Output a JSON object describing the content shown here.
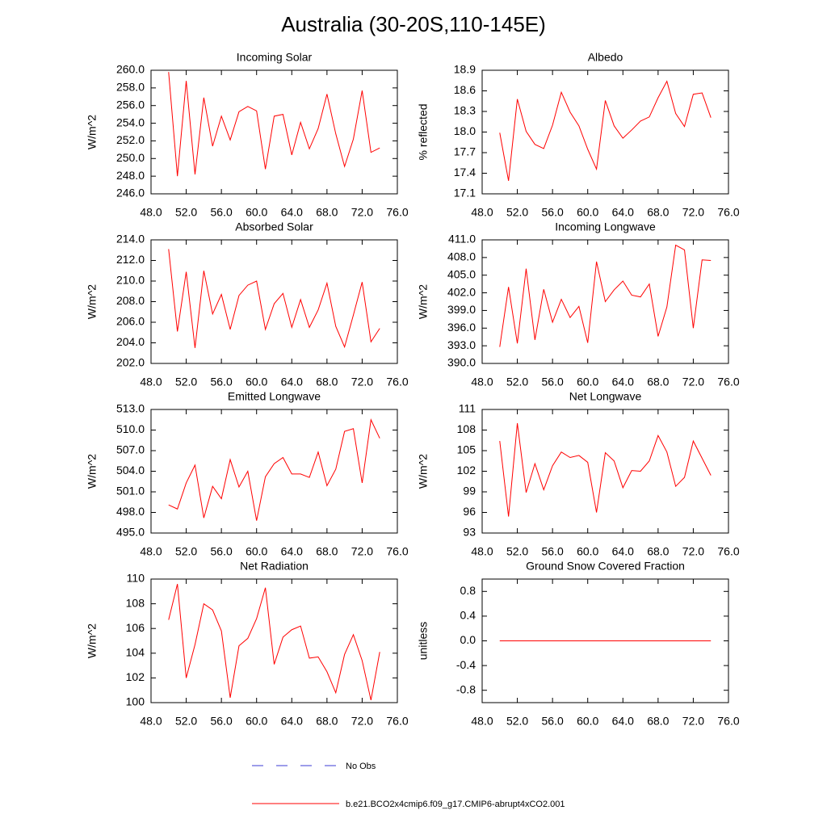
{
  "title": "Australia (30-20S,110-145E)",
  "legend": [
    {
      "label": "No Obs",
      "color": "#3b3bd6",
      "dash": true
    },
    {
      "label": "b.e21.BCO2x4cmip6.f09_g17.CMIP6-abrupt4xCO2.001",
      "color": "#ff0000",
      "dash": false
    }
  ],
  "chart_data": [
    {
      "type": "line",
      "title": "Incoming Solar",
      "y_label": "W/m^2",
      "color": "#ff0000",
      "x": [
        50,
        51,
        52,
        53,
        54,
        55,
        56,
        57,
        58,
        59,
        60,
        61,
        62,
        63,
        64,
        65,
        66,
        67,
        68,
        69,
        70,
        71,
        72,
        73,
        74
      ],
      "values": [
        259.8,
        248.0,
        258.8,
        248.2,
        256.9,
        251.4,
        254.8,
        252.1,
        255.3,
        255.9,
        255.4,
        248.8,
        254.8,
        255.0,
        250.4,
        254.1,
        251.1,
        253.4,
        257.3,
        252.8,
        249.1,
        252.2,
        257.7,
        250.7,
        251.2
      ],
      "xlim": [
        48,
        76
      ],
      "xticks": [
        {
          "value": 48,
          "label": "48.0"
        },
        {
          "value": 52,
          "label": "52.0"
        },
        {
          "value": 56,
          "label": "56.0"
        },
        {
          "value": 60,
          "label": "60.0"
        },
        {
          "value": 64,
          "label": "64.0"
        },
        {
          "value": 68,
          "label": "68.0"
        },
        {
          "value": 72,
          "label": "72.0"
        },
        {
          "value": 76,
          "label": "76.0"
        }
      ],
      "ylim": [
        246,
        260
      ],
      "yticks": [
        {
          "value": 246,
          "label": "246.0"
        },
        {
          "value": 248,
          "label": "248.0"
        },
        {
          "value": 250,
          "label": "250.0"
        },
        {
          "value": 252,
          "label": "252.0"
        },
        {
          "value": 254,
          "label": "254.0"
        },
        {
          "value": 256,
          "label": "256.0"
        },
        {
          "value": 258,
          "label": "258.0"
        },
        {
          "value": 260,
          "label": "260.0"
        }
      ]
    },
    {
      "type": "line",
      "title": "Albedo",
      "y_label": "% reflected",
      "color": "#ff0000",
      "x": [
        50,
        51,
        52,
        53,
        54,
        55,
        56,
        57,
        58,
        59,
        60,
        61,
        62,
        63,
        64,
        65,
        66,
        67,
        68,
        69,
        70,
        71,
        72,
        73,
        74
      ],
      "values": [
        17.99,
        17.29,
        18.48,
        18.01,
        17.82,
        17.76,
        18.1,
        18.58,
        18.29,
        18.09,
        17.75,
        17.46,
        18.46,
        18.09,
        17.91,
        18.03,
        18.16,
        18.22,
        18.5,
        18.74,
        18.27,
        18.08,
        18.55,
        18.57,
        18.21
      ],
      "xlim": [
        48,
        76
      ],
      "xticks": [
        {
          "value": 48,
          "label": "48.0"
        },
        {
          "value": 52,
          "label": "52.0"
        },
        {
          "value": 56,
          "label": "56.0"
        },
        {
          "value": 60,
          "label": "60.0"
        },
        {
          "value": 64,
          "label": "64.0"
        },
        {
          "value": 68,
          "label": "68.0"
        },
        {
          "value": 72,
          "label": "72.0"
        },
        {
          "value": 76,
          "label": "76.0"
        }
      ],
      "ylim": [
        17.1,
        18.9
      ],
      "yticks": [
        17.1,
        17.4,
        17.7,
        {
          "value": 18,
          "label": "18.0"
        },
        18.3,
        18.6,
        18.9
      ]
    },
    {
      "type": "line",
      "title": "Absorbed Solar",
      "y_label": "W/m^2",
      "color": "#ff0000",
      "x": [
        50,
        51,
        52,
        53,
        54,
        55,
        56,
        57,
        58,
        59,
        60,
        61,
        62,
        63,
        64,
        65,
        66,
        67,
        68,
        69,
        70,
        71,
        72,
        73,
        74
      ],
      "values": [
        213.1,
        205.1,
        210.9,
        203.5,
        211.0,
        206.8,
        208.7,
        205.3,
        208.6,
        209.6,
        210.0,
        205.3,
        207.8,
        208.8,
        205.5,
        208.2,
        205.5,
        207.2,
        209.8,
        205.6,
        203.6,
        206.7,
        209.9,
        204.1,
        205.4
      ],
      "xlim": [
        48,
        76
      ],
      "xticks": [
        {
          "value": 48,
          "label": "48.0"
        },
        {
          "value": 52,
          "label": "52.0"
        },
        {
          "value": 56,
          "label": "56.0"
        },
        {
          "value": 60,
          "label": "60.0"
        },
        {
          "value": 64,
          "label": "64.0"
        },
        {
          "value": 68,
          "label": "68.0"
        },
        {
          "value": 72,
          "label": "72.0"
        },
        {
          "value": 76,
          "label": "76.0"
        }
      ],
      "ylim": [
        202,
        214
      ],
      "yticks": [
        {
          "value": 202,
          "label": "202.0"
        },
        {
          "value": 204,
          "label": "204.0"
        },
        {
          "value": 206,
          "label": "206.0"
        },
        {
          "value": 208,
          "label": "208.0"
        },
        {
          "value": 210,
          "label": "210.0"
        },
        {
          "value": 212,
          "label": "212.0"
        },
        {
          "value": 214,
          "label": "214.0"
        }
      ]
    },
    {
      "type": "line",
      "title": "Incoming Longwave",
      "y_label": "W/m^2",
      "color": "#ff0000",
      "x": [
        50,
        51,
        52,
        53,
        54,
        55,
        56,
        57,
        58,
        59,
        60,
        61,
        62,
        63,
        64,
        65,
        66,
        67,
        68,
        69,
        70,
        71,
        72,
        73,
        74
      ],
      "values": [
        392.8,
        403.0,
        393.4,
        406.1,
        394.0,
        402.6,
        397.0,
        400.9,
        397.8,
        399.7,
        393.5,
        407.3,
        400.5,
        402.5,
        404.0,
        401.6,
        401.3,
        403.5,
        394.6,
        399.6,
        410.1,
        409.3,
        396.0,
        407.6,
        407.5
      ],
      "xlim": [
        48,
        76
      ],
      "xticks": [
        {
          "value": 48,
          "label": "48.0"
        },
        {
          "value": 52,
          "label": "52.0"
        },
        {
          "value": 56,
          "label": "56.0"
        },
        {
          "value": 60,
          "label": "60.0"
        },
        {
          "value": 64,
          "label": "64.0"
        },
        {
          "value": 68,
          "label": "68.0"
        },
        {
          "value": 72,
          "label": "72.0"
        },
        {
          "value": 76,
          "label": "76.0"
        }
      ],
      "ylim": [
        390,
        411
      ],
      "yticks": [
        {
          "value": 390,
          "label": "390.0"
        },
        {
          "value": 393,
          "label": "393.0"
        },
        {
          "value": 396,
          "label": "396.0"
        },
        {
          "value": 399,
          "label": "399.0"
        },
        {
          "value": 402,
          "label": "402.0"
        },
        {
          "value": 405,
          "label": "405.0"
        },
        {
          "value": 408,
          "label": "408.0"
        },
        {
          "value": 411,
          "label": "411.0"
        }
      ]
    },
    {
      "type": "line",
      "title": "Emitted Longwave",
      "y_label": "W/m^2",
      "color": "#ff0000",
      "x": [
        50,
        51,
        52,
        53,
        54,
        55,
        56,
        57,
        58,
        59,
        60,
        61,
        62,
        63,
        64,
        65,
        66,
        67,
        68,
        69,
        70,
        71,
        72,
        73,
        74
      ],
      "values": [
        499.1,
        498.5,
        502.3,
        504.9,
        497.2,
        501.8,
        500.0,
        505.7,
        501.7,
        504.0,
        496.8,
        503.2,
        505.1,
        506.0,
        503.6,
        503.6,
        503.1,
        506.8,
        501.9,
        504.3,
        509.8,
        510.2,
        502.3,
        511.5,
        508.8
      ],
      "xlim": [
        48,
        76
      ],
      "xticks": [
        {
          "value": 48,
          "label": "48.0"
        },
        {
          "value": 52,
          "label": "52.0"
        },
        {
          "value": 56,
          "label": "56.0"
        },
        {
          "value": 60,
          "label": "60.0"
        },
        {
          "value": 64,
          "label": "64.0"
        },
        {
          "value": 68,
          "label": "68.0"
        },
        {
          "value": 72,
          "label": "72.0"
        },
        {
          "value": 76,
          "label": "76.0"
        }
      ],
      "ylim": [
        495,
        513
      ],
      "yticks": [
        {
          "value": 495,
          "label": "495.0"
        },
        {
          "value": 498,
          "label": "498.0"
        },
        {
          "value": 501,
          "label": "501.0"
        },
        {
          "value": 504,
          "label": "504.0"
        },
        {
          "value": 507,
          "label": "507.0"
        },
        {
          "value": 510,
          "label": "510.0"
        },
        {
          "value": 513,
          "label": "513.0"
        }
      ]
    },
    {
      "type": "line",
      "title": "Net Longwave",
      "y_label": "W/m^2",
      "color": "#ff0000",
      "x": [
        50,
        51,
        52,
        53,
        54,
        55,
        56,
        57,
        58,
        59,
        60,
        61,
        62,
        63,
        64,
        65,
        66,
        67,
        68,
        69,
        70,
        71,
        72,
        73,
        74
      ],
      "values": [
        106.4,
        95.4,
        109.0,
        98.9,
        103.1,
        99.3,
        102.8,
        104.8,
        104.0,
        104.3,
        103.3,
        96.0,
        104.7,
        103.5,
        99.6,
        102.1,
        102.0,
        103.5,
        107.2,
        104.8,
        99.8,
        101.1,
        106.4,
        103.9,
        101.4
      ],
      "xlim": [
        48,
        76
      ],
      "xticks": [
        {
          "value": 48,
          "label": "48.0"
        },
        {
          "value": 52,
          "label": "52.0"
        },
        {
          "value": 56,
          "label": "56.0"
        },
        {
          "value": 60,
          "label": "60.0"
        },
        {
          "value": 64,
          "label": "64.0"
        },
        {
          "value": 68,
          "label": "68.0"
        },
        {
          "value": 72,
          "label": "72.0"
        },
        {
          "value": 76,
          "label": "76.0"
        }
      ],
      "ylim": [
        93,
        111
      ],
      "yticks": [
        93,
        96,
        99,
        102,
        105,
        108,
        111
      ]
    },
    {
      "type": "line",
      "title": "Net Radiation",
      "y_label": "W/m^2",
      "color": "#ff0000",
      "x": [
        50,
        51,
        52,
        53,
        54,
        55,
        56,
        57,
        58,
        59,
        60,
        61,
        62,
        63,
        64,
        65,
        66,
        67,
        68,
        69,
        70,
        71,
        72,
        73,
        74
      ],
      "values": [
        106.7,
        109.6,
        102.0,
        104.7,
        108.0,
        107.5,
        105.8,
        100.4,
        104.6,
        105.2,
        106.8,
        109.3,
        103.1,
        105.3,
        105.9,
        106.2,
        103.6,
        103.7,
        102.5,
        100.8,
        103.9,
        105.5,
        103.4,
        100.2,
        104.1
      ],
      "xlim": [
        48,
        76
      ],
      "xticks": [
        {
          "value": 48,
          "label": "48.0"
        },
        {
          "value": 52,
          "label": "52.0"
        },
        {
          "value": 56,
          "label": "56.0"
        },
        {
          "value": 60,
          "label": "60.0"
        },
        {
          "value": 64,
          "label": "64.0"
        },
        {
          "value": 68,
          "label": "68.0"
        },
        {
          "value": 72,
          "label": "72.0"
        },
        {
          "value": 76,
          "label": "76.0"
        }
      ],
      "ylim": [
        100,
        110
      ],
      "yticks": [
        100,
        102,
        104,
        106,
        108,
        110
      ]
    },
    {
      "type": "line",
      "title": "Ground Snow Covered Fraction",
      "y_label": "unitless",
      "color": "#ff0000",
      "x": [
        50,
        51,
        52,
        53,
        54,
        55,
        56,
        57,
        58,
        59,
        60,
        61,
        62,
        63,
        64,
        65,
        66,
        67,
        68,
        69,
        70,
        71,
        72,
        73,
        74
      ],
      "values": [
        0,
        0,
        0,
        0,
        0,
        0,
        0,
        0,
        0,
        0,
        0,
        0,
        0,
        0,
        0,
        0,
        0,
        0,
        0,
        0,
        0,
        0,
        0,
        0,
        0
      ],
      "xlim": [
        48,
        76
      ],
      "xticks": [
        {
          "value": 48,
          "label": "48.0"
        },
        {
          "value": 52,
          "label": "52.0"
        },
        {
          "value": 56,
          "label": "56.0"
        },
        {
          "value": 60,
          "label": "60.0"
        },
        {
          "value": 64,
          "label": "64.0"
        },
        {
          "value": 68,
          "label": "68.0"
        },
        {
          "value": 72,
          "label": "72.0"
        },
        {
          "value": 76,
          "label": "76.0"
        }
      ],
      "ylim": [
        -1,
        1
      ],
      "yticks": [
        -0.8,
        -0.4,
        {
          "value": 0,
          "label": "0.0"
        },
        0.4,
        0.8
      ]
    }
  ]
}
